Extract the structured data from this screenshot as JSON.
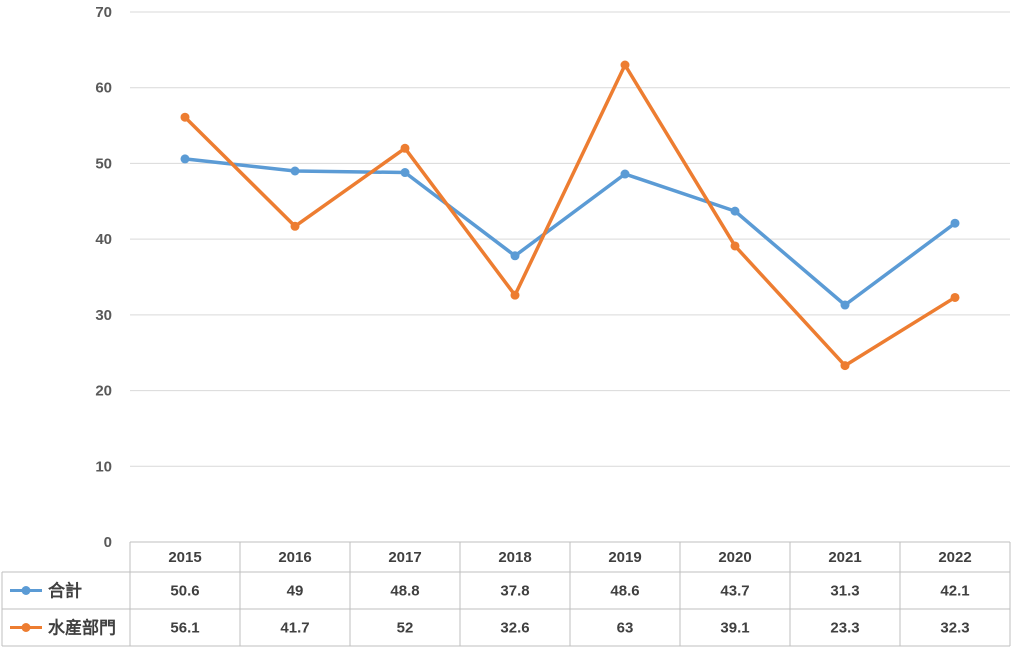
{
  "chart_data": {
    "type": "line",
    "categories": [
      "2015",
      "2016",
      "2017",
      "2018",
      "2019",
      "2020",
      "2021",
      "2022"
    ],
    "series": [
      {
        "name": "合計",
        "color": "#5B9BD5",
        "values": [
          50.6,
          49,
          48.8,
          37.8,
          48.6,
          43.7,
          31.3,
          42.1
        ]
      },
      {
        "name": "水産部門",
        "color": "#ED7D31",
        "values": [
          56.1,
          41.7,
          52,
          32.6,
          63,
          39.1,
          23.3,
          32.3
        ]
      }
    ],
    "ylim": [
      0,
      70
    ],
    "yticks": [
      0,
      10,
      20,
      30,
      40,
      50,
      60,
      70
    ],
    "grid": true,
    "legend": "data-table",
    "data_table": true
  }
}
